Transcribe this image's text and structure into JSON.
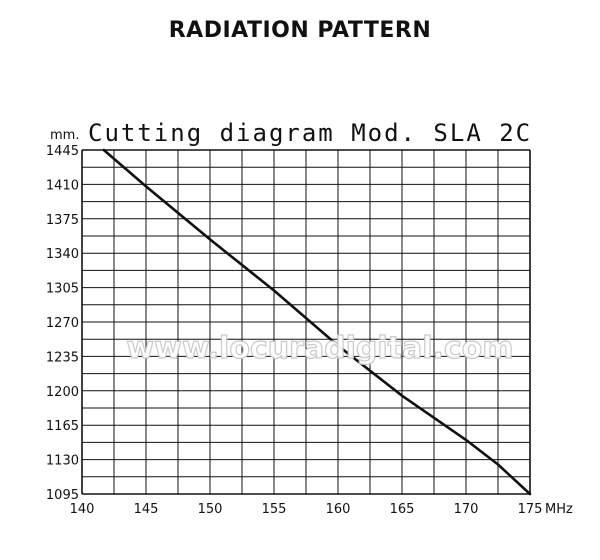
{
  "page": {
    "heading": "RADIATION PATTERN",
    "watermark": "www.locuradigital.com"
  },
  "chart_data": {
    "type": "line",
    "title": "Cutting diagram Mod. SLA 2C",
    "xlabel": "MHz",
    "ylabel": "mm.",
    "xlim": [
      140,
      175
    ],
    "ylim": [
      1095,
      1445
    ],
    "x_ticks": [
      "140",
      "145",
      "150",
      "155",
      "160",
      "165",
      "170",
      "175"
    ],
    "y_ticks": [
      "1445",
      "1410",
      "1375",
      "1340",
      "1305",
      "1270",
      "1235",
      "1200",
      "1165",
      "1130",
      "1095"
    ],
    "grid": true,
    "series": [
      {
        "x": [
          141.7,
          145,
          150,
          155,
          160,
          165,
          170,
          172.5,
          175
        ],
        "y": [
          1445,
          1408,
          1354,
          1302,
          1246,
          1195,
          1150,
          1125,
          1095
        ]
      }
    ],
    "colors": {
      "line": "#111111",
      "grid": "#111111"
    }
  }
}
